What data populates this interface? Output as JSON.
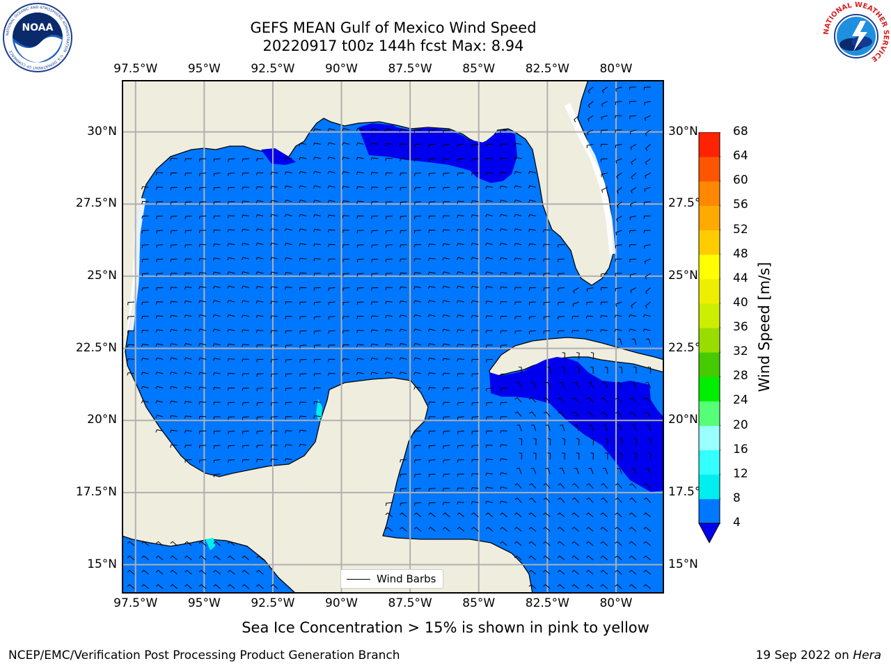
{
  "title": {
    "line1": "GEFS MEAN Gulf of Mexico Wind Speed",
    "line2": "20220917 t00z 144h fcst   Max: 8.94"
  },
  "logos": {
    "left": "noaa-logo",
    "right": "national-weather-service-logo",
    "left_text": "NATIONAL OCEANIC AND ATMOSPHERIC ADMINISTRATION · U.S. DEPARTMENT OF COMMERCE",
    "left_mark": "NOAA",
    "right_text": "NATIONAL WEATHER SERVICE"
  },
  "map": {
    "lon_labels": [
      "97.5°W",
      "95°W",
      "92.5°W",
      "90°W",
      "87.5°W",
      "85°W",
      "82.5°W",
      "80°W"
    ],
    "lat_labels": [
      "30°N",
      "27.5°N",
      "25°N",
      "22.5°N",
      "20°N",
      "17.5°N",
      "15°N"
    ],
    "lon_range": [
      -98,
      -78.25
    ],
    "lat_range": [
      14,
      31.8
    ],
    "land_color": "#efedde",
    "grid": true,
    "grid_color": "#b0b0b0",
    "wind_field": "wind barbs, mostly easterly/southeasterly flow across the Gulf"
  },
  "colorbar": {
    "label": "Wind Speed [m/s]",
    "ticks": [
      "68",
      "64",
      "60",
      "56",
      "52",
      "48",
      "44",
      "40",
      "36",
      "32",
      "28",
      "24",
      "20",
      "16",
      "12",
      "8",
      "4"
    ],
    "colors_bottom_to_top": [
      "#0077ff",
      "#00eeee",
      "#33ffff",
      "#99ffff",
      "#55ff77",
      "#00ee00",
      "#44cc00",
      "#99dd00",
      "#ccee00",
      "#eeee00",
      "#ffff00",
      "#ffcc00",
      "#ffaa00",
      "#ff8800",
      "#ff5500",
      "#ff2200",
      "#ff0000"
    ],
    "under_color": "#0000ee"
  },
  "legend": {
    "label": "Wind Barbs"
  },
  "note": "Sea Ice Concentration > 15% is shown in pink to yellow",
  "credits": {
    "left": "NCEP/EMC/Verification Post Processing Product Generation Branch",
    "date": "19 Sep 2022 on ",
    "machine": "Hera"
  }
}
